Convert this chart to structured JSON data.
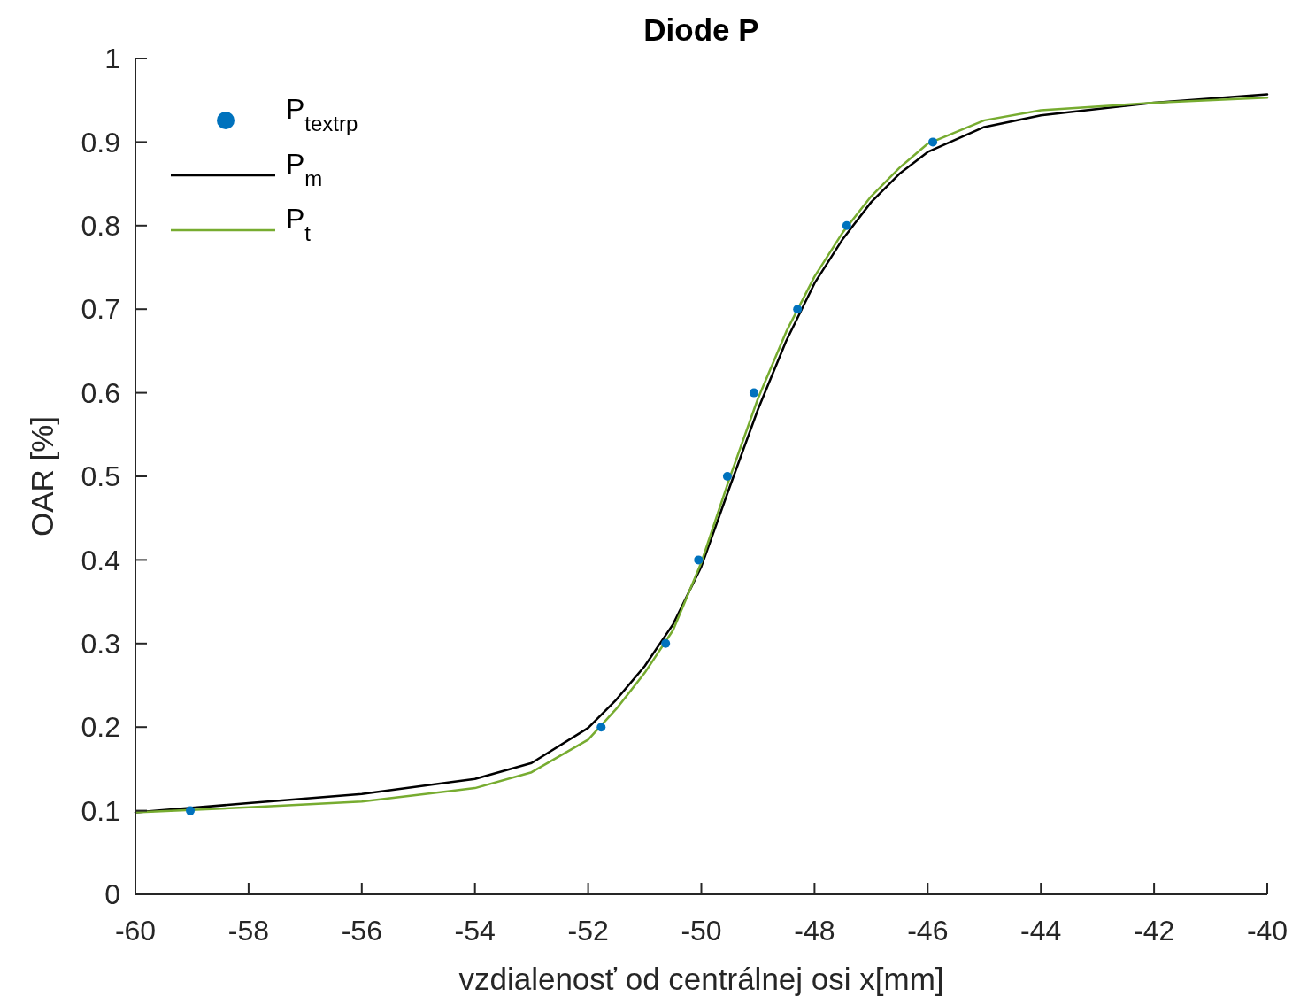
{
  "chart_data": {
    "type": "line",
    "title": "Diode P",
    "xlabel": "vzdialenosť od centrálnej osi x[mm]",
    "ylabel": "OAR [%]",
    "xlim": [
      -60,
      -40
    ],
    "xticks": [
      -60,
      -58,
      -56,
      -54,
      -52,
      -50,
      -48,
      -46,
      -44,
      -42,
      -40
    ],
    "ylim": [
      0,
      1
    ],
    "yticks": [
      0,
      0.1,
      0.2,
      0.3,
      0.4,
      0.5,
      0.6,
      0.7,
      0.8,
      0.9,
      1
    ],
    "grid": false,
    "legend": "top left",
    "series": [
      {
        "name": "P$_{t}$$_{extrp}$",
        "type": "scatter",
        "marker": "circle",
        "color": "#0072bd",
        "x": [
          -59.03,
          -51.77,
          -50.63,
          -50.05,
          -49.54,
          -49.07,
          -48.3,
          -47.43,
          -45.91
        ],
        "values": [
          0.1,
          0.2,
          0.3,
          0.4,
          0.5,
          0.6,
          0.7,
          0.8,
          0.9
        ]
      },
      {
        "name": "P$_{m}$",
        "type": "line",
        "color": "#000000",
        "line_style": "solid",
        "x": [
          -60,
          -58,
          -56,
          -54,
          -53,
          -52,
          -51.5,
          -51,
          -50.5,
          -50,
          -49.5,
          -49,
          -48.5,
          -48,
          -47.5,
          -47,
          -46.5,
          -46,
          -45,
          -44,
          -42,
          -40
        ],
        "values": [
          0.098,
          0.109,
          0.12,
          0.138,
          0.157,
          0.199,
          0.233,
          0.273,
          0.323,
          0.392,
          0.487,
          0.58,
          0.662,
          0.731,
          0.784,
          0.828,
          0.862,
          0.888,
          0.918,
          0.932,
          0.947,
          0.957
        ]
      },
      {
        "name": "P$_{t}$",
        "type": "line",
        "color": "#77ac30",
        "line_style": "solid",
        "x": [
          -60,
          -58,
          -56,
          -54,
          -53,
          -52,
          -51.5,
          -51,
          -50.5,
          -50,
          -49.5,
          -49,
          -48.5,
          -48,
          -47.5,
          -47,
          -46.5,
          -46,
          -45,
          -44,
          -42,
          -40
        ],
        "values": [
          0.098,
          0.104,
          0.111,
          0.127,
          0.146,
          0.185,
          0.222,
          0.265,
          0.316,
          0.397,
          0.498,
          0.593,
          0.673,
          0.739,
          0.792,
          0.835,
          0.869,
          0.898,
          0.926,
          0.938,
          0.947,
          0.953
        ]
      }
    ]
  }
}
